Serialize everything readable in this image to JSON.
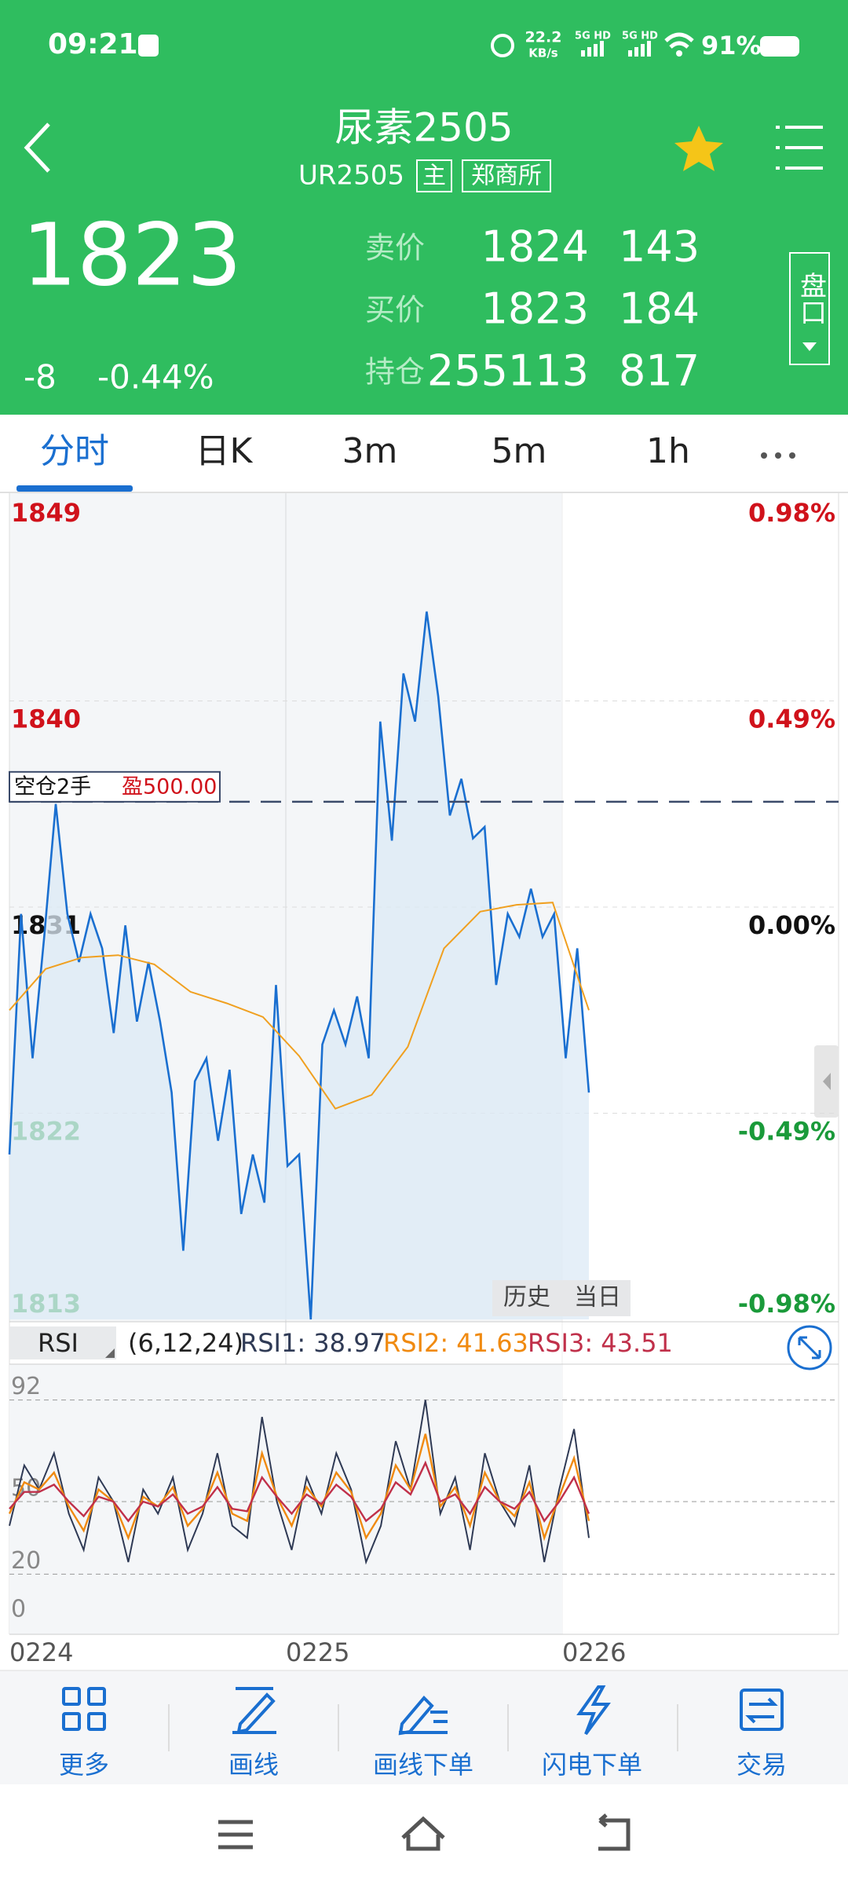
{
  "status_bar": {
    "time": "09:21",
    "speed": "22.2",
    "speed_unit": "KB/s",
    "signals": [
      "5G HD",
      "5G HD"
    ],
    "battery": "91%"
  },
  "header": {
    "title": "尿素2505",
    "code": "UR2505",
    "tags": [
      "主",
      "郑商所"
    ],
    "last_price": "1823",
    "change": "-8",
    "change_pct": "-0.44%",
    "quotes": [
      {
        "label": "卖价",
        "price": "1824",
        "volume": "143"
      },
      {
        "label": "买价",
        "price": "1823",
        "volume": "184"
      },
      {
        "label": "持仓",
        "price": "255113",
        "volume": "817"
      }
    ],
    "depth_button": "盘口"
  },
  "tabs": {
    "items": [
      "分时",
      "日K",
      "3m",
      "5m",
      "1h"
    ],
    "active": 0
  },
  "price_chart": {
    "type": "line",
    "ylim": [
      1813,
      1849
    ],
    "yticks": [
      1849,
      1840,
      1831,
      1822,
      1813
    ],
    "pct_ticks": [
      "0.98%",
      "0.49%",
      "0.00%",
      "-0.49%",
      "-0.98%"
    ],
    "series": [
      {
        "color": "#1a6fd0",
        "fill": "#dceaf6",
        "values": [
          1820.2,
          1830.7,
          1824.4,
          1829.7,
          1835.5,
          1830.7,
          1828.6,
          1830.7,
          1829.2,
          1825.5,
          1830.2,
          1826,
          1828.6,
          1826,
          1822.9,
          1816,
          1823.4,
          1824.4,
          1820.8,
          1823.9,
          1817.6,
          1820.2,
          1818.1,
          1827.6,
          1819.7,
          1820.2,
          1813,
          1825,
          1826.5,
          1825,
          1827.1,
          1824.4,
          1839.1,
          1833.9,
          1841.2,
          1839.1,
          1843.9,
          1840.2,
          1835,
          1836.6,
          1834,
          1834.5,
          1827.6,
          1830.7,
          1829.7,
          1831.8,
          1829.7,
          1830.7,
          1824.4,
          1829.2,
          1822.9
        ]
      },
      {
        "color": "#f0a020",
        "values": [
          1826.5,
          1828.3,
          1828.8,
          1828.9,
          1828.5,
          1827.3,
          1826.8,
          1826.2,
          1824.5,
          1822.2,
          1822.8,
          1824.9,
          1829.2,
          1830.8,
          1831.1,
          1831.2,
          1826.5
        ]
      }
    ],
    "position": {
      "price": 1835.6,
      "label": "空仓2手",
      "pnl": "盈500.00"
    },
    "toggle": [
      "历史",
      "当日"
    ],
    "x_labels": [
      "0224",
      "0225",
      "0226"
    ]
  },
  "rsi": {
    "type": "line",
    "name": "RSI",
    "params": "(6,12,24)",
    "ylim": [
      0,
      100
    ],
    "yticks": [
      92,
      50,
      20,
      0
    ],
    "series": [
      {
        "name": "RSI1: 38.97",
        "color": "#2f3a55",
        "values": [
          40,
          65,
          55,
          70,
          45,
          30,
          60,
          50,
          25,
          55,
          45,
          60,
          30,
          45,
          70,
          40,
          35,
          85,
          50,
          30,
          60,
          45,
          70,
          55,
          25,
          40,
          75,
          55,
          92,
          45,
          60,
          30,
          70,
          50,
          40,
          65,
          25,
          55,
          80,
          35
        ]
      },
      {
        "name": "RSI2: 41.63",
        "color": "#f08a10",
        "values": [
          45,
          58,
          55,
          62,
          48,
          38,
          55,
          50,
          35,
          52,
          48,
          56,
          40,
          47,
          62,
          45,
          42,
          70,
          52,
          40,
          56,
          48,
          62,
          54,
          35,
          45,
          65,
          55,
          78,
          48,
          56,
          40,
          62,
          50,
          44,
          58,
          35,
          52,
          68,
          42
        ]
      },
      {
        "name": "RSI3: 43.51",
        "color": "#c0304a",
        "values": [
          47,
          54,
          54,
          57,
          50,
          44,
          52,
          50,
          42,
          50,
          48,
          53,
          45,
          48,
          56,
          47,
          46,
          60,
          52,
          45,
          53,
          49,
          57,
          52,
          42,
          47,
          58,
          53,
          66,
          50,
          53,
          45,
          56,
          50,
          47,
          54,
          42,
          50,
          60,
          45
        ]
      }
    ]
  },
  "toolbar": [
    "更多",
    "画线",
    "画线下单",
    "闪电下单",
    "交易"
  ]
}
